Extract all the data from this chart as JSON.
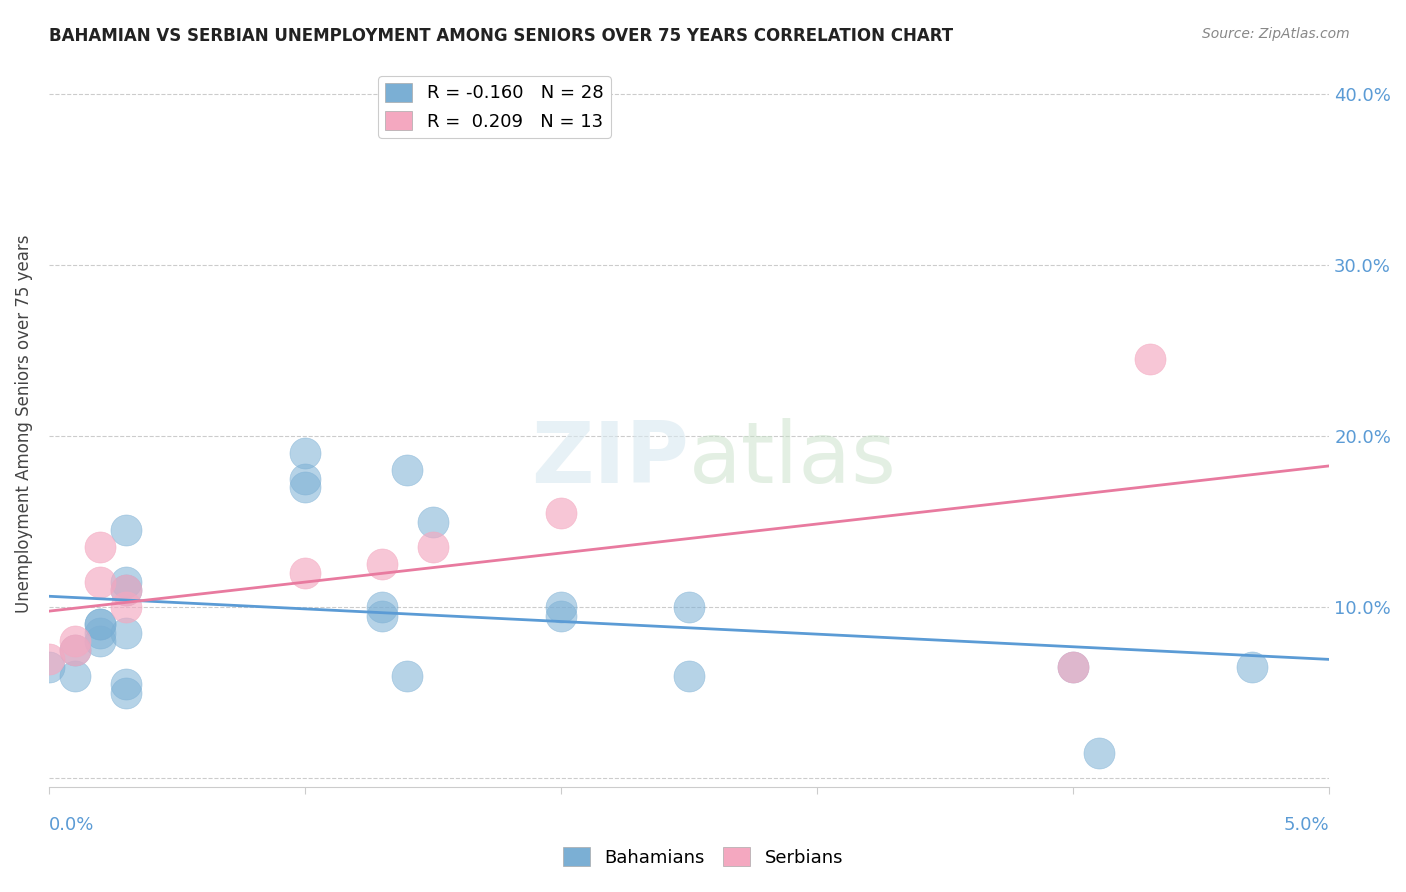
{
  "title": "BAHAMIAN VS SERBIAN UNEMPLOYMENT AMONG SENIORS OVER 75 YEARS CORRELATION CHART",
  "source": "Source: ZipAtlas.com",
  "ylabel": "Unemployment Among Seniors over 75 years",
  "yticks": [
    0.0,
    0.1,
    0.2,
    0.3,
    0.4
  ],
  "ytick_labels": [
    "",
    "10.0%",
    "20.0%",
    "30.0%",
    "40.0%"
  ],
  "xlim": [
    0.0,
    0.05
  ],
  "ylim": [
    -0.005,
    0.42
  ],
  "legend_entries": [
    {
      "label": "R = -0.160   N = 28",
      "color": "#a8c4e0"
    },
    {
      "label": "R =  0.209   N = 13",
      "color": "#f4a8b8"
    }
  ],
  "bahamian_x": [
    0.0,
    0.001,
    0.001,
    0.002,
    0.002,
    0.002,
    0.002,
    0.003,
    0.003,
    0.003,
    0.003,
    0.003,
    0.003,
    0.01,
    0.01,
    0.01,
    0.013,
    0.013,
    0.014,
    0.014,
    0.015,
    0.02,
    0.02,
    0.025,
    0.025,
    0.04,
    0.041,
    0.047
  ],
  "bahamian_y": [
    0.065,
    0.06,
    0.075,
    0.08,
    0.085,
    0.09,
    0.09,
    0.05,
    0.055,
    0.085,
    0.11,
    0.115,
    0.145,
    0.17,
    0.175,
    0.19,
    0.095,
    0.1,
    0.06,
    0.18,
    0.15,
    0.095,
    0.1,
    0.06,
    0.1,
    0.065,
    0.015,
    0.065
  ],
  "serbian_x": [
    0.0,
    0.001,
    0.001,
    0.002,
    0.002,
    0.003,
    0.003,
    0.01,
    0.013,
    0.015,
    0.02,
    0.04,
    0.043
  ],
  "serbian_y": [
    0.07,
    0.075,
    0.08,
    0.115,
    0.135,
    0.1,
    0.11,
    0.12,
    0.125,
    0.135,
    0.155,
    0.065,
    0.245
  ],
  "bahamian_color": "#7bafd4",
  "serbian_color": "#f4a8c0",
  "bahamian_line_color": "#5b9bd5",
  "serbian_line_color": "#e87a9f",
  "background_color": "#ffffff",
  "grid_color": "#cccccc"
}
